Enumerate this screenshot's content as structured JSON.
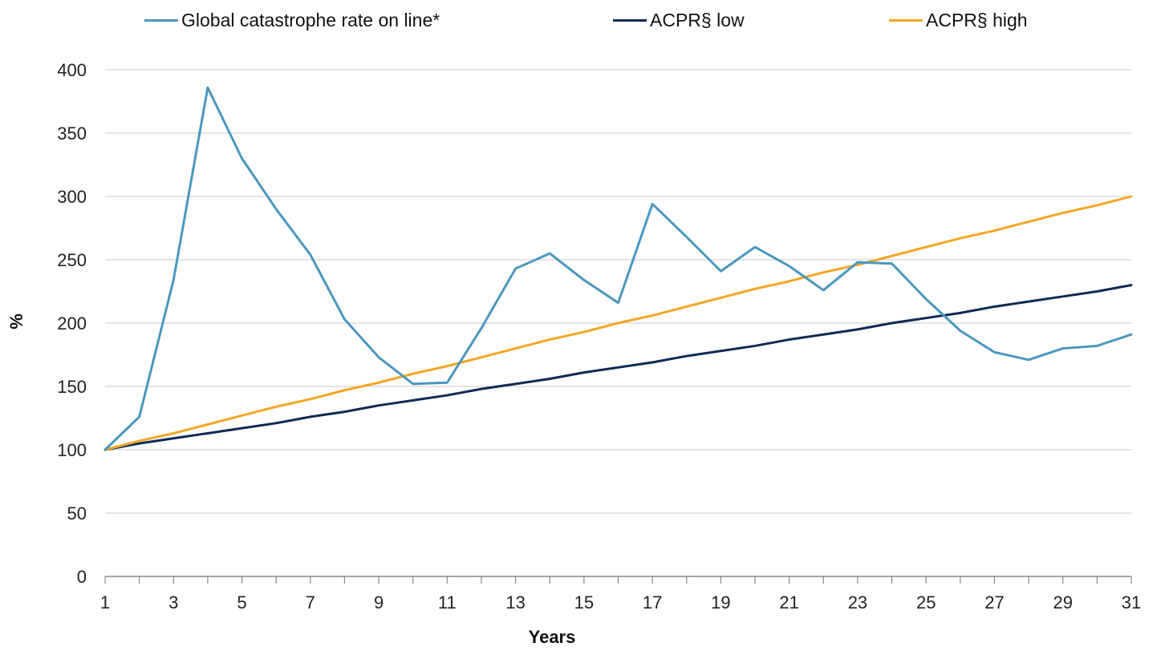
{
  "chart_data": {
    "type": "line",
    "title": "",
    "xlabel": "Years",
    "ylabel": "%",
    "x": [
      1,
      2,
      3,
      4,
      5,
      6,
      7,
      8,
      9,
      10,
      11,
      12,
      13,
      14,
      15,
      16,
      17,
      18,
      19,
      20,
      21,
      22,
      23,
      24,
      25,
      26,
      27,
      28,
      29,
      30,
      31
    ],
    "x_ticks": [
      "1",
      "3",
      "5",
      "7",
      "9",
      "11",
      "13",
      "15",
      "17",
      "19",
      "21",
      "23",
      "25",
      "27",
      "29",
      "31"
    ],
    "y_ticks": [
      "0",
      "50",
      "100",
      "150",
      "200",
      "250",
      "300",
      "350",
      "400"
    ],
    "xlim": [
      1,
      31
    ],
    "ylim": [
      0,
      400
    ],
    "grid": "horizontal",
    "legend_position": "top",
    "series": [
      {
        "name": "Global catastrophe rate on line*",
        "color": "#4a97c0",
        "values": [
          100,
          126,
          234,
          386,
          330,
          290,
          254,
          203,
          173,
          152,
          153,
          196,
          243,
          255,
          234,
          216,
          294,
          268,
          241,
          260,
          245,
          226,
          248,
          247,
          219,
          194,
          177,
          171,
          180,
          182,
          191
        ]
      },
      {
        "name": "ACPR§ low",
        "color": "#0b2b55",
        "values": [
          100,
          105,
          109,
          113,
          117,
          121,
          126,
          130,
          135,
          139,
          143,
          148,
          152,
          156,
          161,
          165,
          169,
          174,
          178,
          182,
          187,
          191,
          195,
          200,
          204,
          208,
          213,
          217,
          221,
          225,
          230
        ]
      },
      {
        "name": "ACPR§ high",
        "color": "#f5a623",
        "values": [
          100,
          107,
          113,
          120,
          127,
          134,
          140,
          147,
          153,
          160,
          166,
          173,
          180,
          187,
          193,
          200,
          206,
          213,
          220,
          227,
          233,
          240,
          246,
          253,
          260,
          267,
          273,
          280,
          287,
          293,
          300
        ]
      }
    ]
  }
}
